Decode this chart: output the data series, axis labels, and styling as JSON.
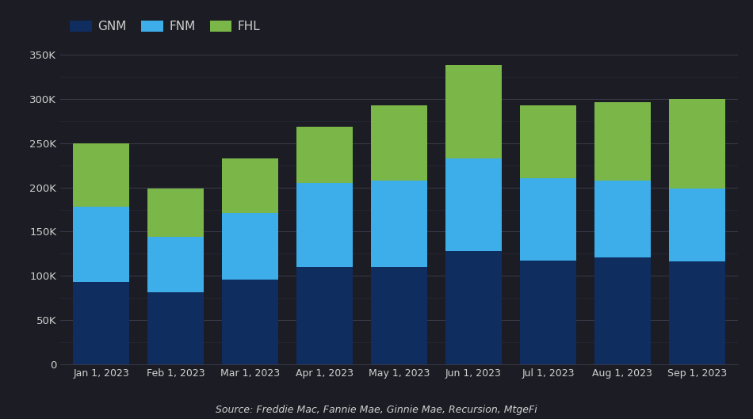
{
  "categories": [
    "Jan 1, 2023",
    "Feb 1, 2023",
    "Mar 1, 2023",
    "Apr 1, 2023",
    "May 1, 2023",
    "Jun 1, 2023",
    "Jul 1, 2023",
    "Aug 1, 2023",
    "Sep 1, 2023"
  ],
  "GNM": [
    93000,
    82000,
    96000,
    110000,
    110000,
    128000,
    117000,
    121000,
    116000
  ],
  "FNM": [
    85000,
    62000,
    75000,
    95000,
    98000,
    105000,
    93000,
    87000,
    83000
  ],
  "FHL": [
    72000,
    55000,
    62000,
    63000,
    85000,
    105000,
    83000,
    88000,
    101000
  ],
  "gnm_color": "#0f2d5e",
  "fnm_color": "#3daee9",
  "fhl_color": "#7ab648",
  "bg_color": "#1c1c24",
  "plot_bg_color": "#1c1c24",
  "text_color": "#d0d0d0",
  "major_grid_color": "#3a3a4a",
  "minor_grid_color": "#2a2a38",
  "ylabel_max": 350000,
  "major_yticks": [
    0,
    50000,
    100000,
    150000,
    200000,
    250000,
    300000,
    350000
  ],
  "minor_yticks": [
    25000,
    75000,
    125000,
    175000,
    225000,
    275000,
    325000
  ],
  "source_text": "Source: Freddie Mac, Fannie Mae, Ginnie Mae, Recursion, MtgeFi",
  "legend_labels": [
    "GNM",
    "FNM",
    "FHL"
  ],
  "bar_width": 0.75
}
